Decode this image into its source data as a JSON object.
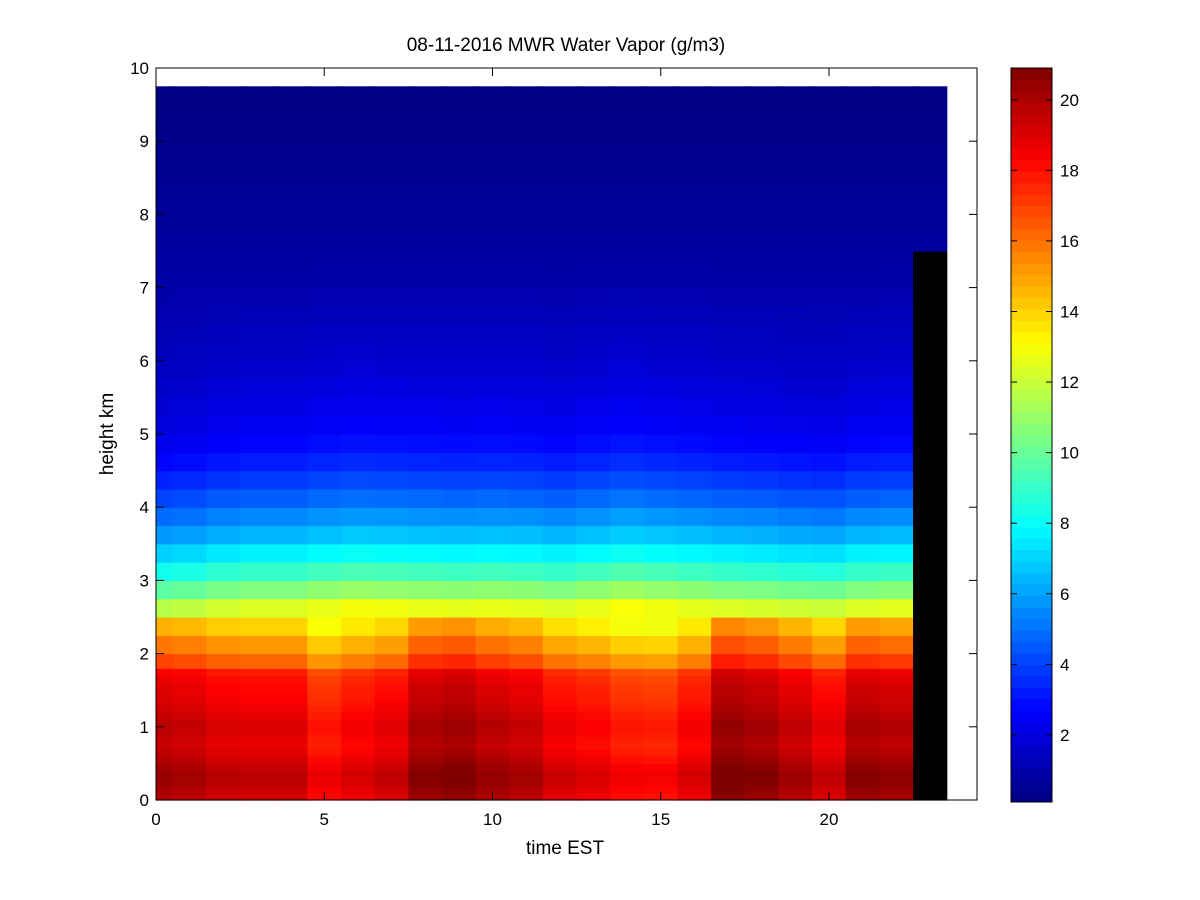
{
  "chart_data": {
    "type": "heatmap",
    "title": "08-11-2016 MWR Water Vapor (g/m3)",
    "xlabel": "time EST",
    "ylabel": "height km",
    "xlim": [
      0,
      24.4
    ],
    "ylim": [
      0,
      10
    ],
    "x_ticks": [
      0,
      5,
      10,
      15,
      20
    ],
    "y_ticks": [
      0,
      1,
      2,
      3,
      4,
      5,
      6,
      7,
      8,
      9,
      10
    ],
    "time_bins_hours": [
      0,
      0.5,
      1.5,
      2.5,
      3.5,
      4.5,
      5.5,
      6.5,
      7.5,
      8.5,
      9.5,
      10.5,
      11.5,
      12.5,
      13.5,
      14.5,
      15.5,
      16.5,
      17.5,
      18.5,
      19.5,
      20.5,
      21.5,
      22.5,
      23.5
    ],
    "height_bins_km": [
      0,
      0.1,
      0.2,
      0.3,
      0.4,
      0.5,
      0.6,
      0.7,
      0.8,
      0.9,
      1.0,
      1.1,
      1.2,
      1.3,
      1.4,
      1.5,
      1.6,
      1.7,
      1.8,
      2.0,
      2.25,
      2.5,
      2.75,
      3.0,
      3.25,
      3.5,
      3.75,
      4.0,
      4.25,
      4.5,
      4.75,
      5.0,
      5.25,
      5.5,
      5.75,
      6.0,
      6.25,
      6.5,
      6.75,
      7.0,
      7.25,
      7.5,
      7.75,
      8.0,
      8.25,
      8.5,
      8.75,
      9.0,
      9.25,
      9.5,
      9.75
    ],
    "surface_profile_g_m3": [
      19.5,
      19.7,
      19.9,
      20.0,
      19.8,
      19.5,
      19.2,
      19.0,
      19.1,
      19.3,
      19.3,
      19.1,
      18.9,
      18.7,
      18.6,
      18.5,
      18.3,
      18.0,
      17.6
    ],
    "column_bottom_offset_g_m3": [
      0.4,
      0.2,
      -0.2,
      -0.3,
      -0.3,
      -1.3,
      -0.8,
      -0.4,
      0.8,
      1.0,
      0.5,
      0.2,
      -0.6,
      -0.9,
      -1.4,
      -1.5,
      -0.8,
      1.2,
      0.9,
      0.3,
      -0.4,
      0.8,
      0.6
    ],
    "column_top_offset_g_m3": [
      -0.8,
      -0.6,
      -0.2,
      0,
      0,
      0.3,
      0.5,
      0.4,
      0.3,
      0.2,
      0.3,
      0.2,
      0,
      0.3,
      0.6,
      0.4,
      0.2,
      0,
      -0.1,
      -0.3,
      -0.4,
      0,
      0.1
    ],
    "profile_keypoints": [
      {
        "height_km": 1.8,
        "value_g_m3": 17.0
      },
      {
        "height_km": 2.4,
        "value_g_m3": 14.2
      },
      {
        "height_km": 2.8,
        "value_g_m3": 11.0
      },
      {
        "height_km": 3.2,
        "value_g_m3": 8.5
      },
      {
        "height_km": 3.6,
        "value_g_m3": 6.5
      },
      {
        "height_km": 4.0,
        "value_g_m3": 5.0
      },
      {
        "height_km": 4.5,
        "value_g_m3": 3.5
      },
      {
        "height_km": 5.0,
        "value_g_m3": 2.5
      },
      {
        "height_km": 6.0,
        "value_g_m3": 1.6
      },
      {
        "height_km": 7.0,
        "value_g_m3": 1.0
      },
      {
        "height_km": 8.0,
        "value_g_m3": 0.6
      },
      {
        "height_km": 9.75,
        "value_g_m3": 0.15
      }
    ],
    "colorbar": {
      "colormap": "jet",
      "range": [
        0.1,
        20.9
      ],
      "ticks": [
        2,
        4,
        6,
        8,
        10,
        12,
        14,
        16,
        18,
        20
      ]
    },
    "grid": false
  }
}
